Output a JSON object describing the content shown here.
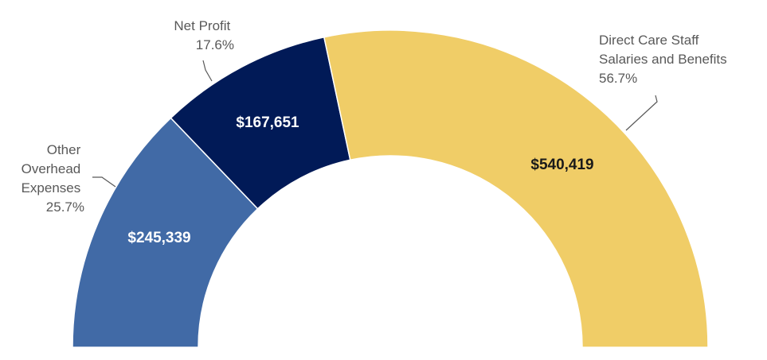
{
  "chart_data": {
    "type": "pie",
    "subtype": "half-donut",
    "categories": [
      "Other Overhead Expenses",
      "Net Profit",
      "Direct Care Staff Salaries and Benefits"
    ],
    "values": [
      245339,
      167651,
      540419
    ],
    "value_labels": [
      "$245,339",
      "$167,651",
      "$540,419"
    ],
    "percent_labels": [
      "25.7%",
      "17.6%",
      "56.7%"
    ],
    "category_label_lines": [
      [
        "Other",
        "Overhead",
        "Expenses"
      ],
      [
        "Net Profit"
      ],
      [
        "Direct Care Staff",
        "Salaries and Benefits"
      ]
    ],
    "colors": [
      "#416AA6",
      "#011A57",
      "#F0CD67"
    ],
    "value_label_colors": [
      "#FFFFFF",
      "#FFFFFF",
      "#1A1A1A"
    ],
    "legend": "none"
  }
}
